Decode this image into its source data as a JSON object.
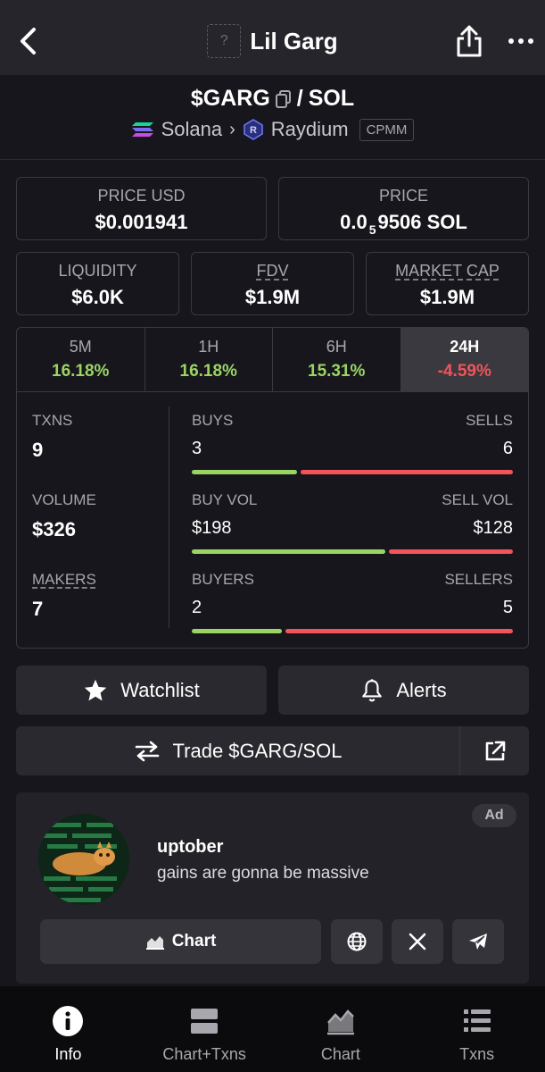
{
  "header": {
    "title": "Lil Garg",
    "token_placeholder": "?"
  },
  "pair": {
    "base": "$GARG",
    "separator": "/",
    "quote": "SOL",
    "chain": "Solana",
    "dex": "Raydium",
    "pool_type": "CPMM"
  },
  "prices": {
    "price_usd_label": "PRICE USD",
    "price_usd": "$0.001941",
    "price_label": "PRICE",
    "price_prefix": "0.0",
    "price_subscript": "5",
    "price_rest": "9506 SOL"
  },
  "stats": {
    "liquidity_label": "LIQUIDITY",
    "liquidity": "$6.0K",
    "fdv_label": "FDV",
    "fdv": "$1.9M",
    "mcap_label": "MARKET CAP",
    "mcap": "$1.9M"
  },
  "changes": [
    {
      "label": "5M",
      "value": "16.18%",
      "sign": "pos"
    },
    {
      "label": "1H",
      "value": "16.18%",
      "sign": "pos"
    },
    {
      "label": "6H",
      "value": "15.31%",
      "sign": "pos"
    },
    {
      "label": "24H",
      "value": "-4.59%",
      "sign": "neg"
    }
  ],
  "activity": {
    "txns_label": "TXNS",
    "txns": "9",
    "volume_label": "VOLUME",
    "volume": "$326",
    "makers_label": "MAKERS",
    "makers": "7",
    "buys_label": "BUYS",
    "buys": "3",
    "sells_label": "SELLS",
    "sells": "6",
    "buys_fraction": 0.333,
    "buy_vol_label": "BUY VOL",
    "buy_vol": "$198",
    "sell_vol_label": "SELL VOL",
    "sell_vol": "$128",
    "buy_vol_fraction": 0.607,
    "buyers_label": "BUYERS",
    "buyers": "2",
    "sellers_label": "SELLERS",
    "sellers": "5",
    "buyers_fraction": 0.286
  },
  "actions": {
    "watchlist": "Watchlist",
    "alerts": "Alerts",
    "trade": "Trade $GARG/SOL"
  },
  "ad": {
    "badge": "Ad",
    "name": "uptober",
    "description": "gains are gonna be massive",
    "chart_button": "Chart"
  },
  "nav": [
    {
      "label": "Info",
      "icon": "info-icon",
      "active": true
    },
    {
      "label": "Chart+Txns",
      "icon": "split-layout-icon",
      "active": false
    },
    {
      "label": "Chart",
      "icon": "area-chart-icon",
      "active": false
    },
    {
      "label": "Txns",
      "icon": "list-icon",
      "active": false
    }
  ],
  "colors": {
    "positive": "#9bd463",
    "negative": "#f1545b",
    "background": "#17161c"
  }
}
